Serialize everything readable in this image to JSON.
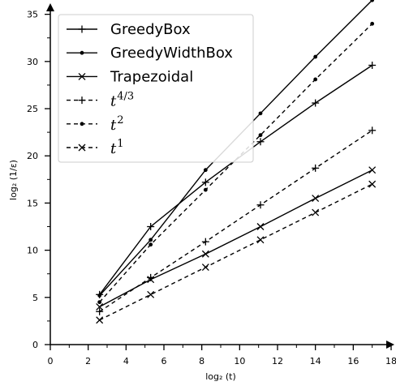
{
  "chart_data": {
    "type": "line",
    "xlabel": "log₂ (t)",
    "ylabel": "log₂ (1/ε)",
    "xlim": [
      0,
      18
    ],
    "ylim": [
      0,
      36
    ],
    "x_ticks": [
      0,
      2,
      4,
      6,
      8,
      10,
      12,
      14,
      16,
      18
    ],
    "y_ticks": [
      0,
      5,
      10,
      15,
      20,
      25,
      30,
      35
    ],
    "grid": false,
    "legend_position": "top-left",
    "series": [
      {
        "name": "GreedyBox",
        "style": "solid",
        "marker": "plus",
        "x": [
          2.6,
          5.3,
          8.2,
          11.1,
          14.0,
          17.0
        ],
        "y": [
          5.3,
          12.5,
          17.2,
          21.5,
          25.6,
          29.6
        ]
      },
      {
        "name": "GreedyWidthBox",
        "style": "solid",
        "marker": "dot",
        "x": [
          2.6,
          5.3,
          8.2,
          11.1,
          14.0,
          17.0
        ],
        "y": [
          5.2,
          11.1,
          18.5,
          24.5,
          30.5,
          36.5
        ]
      },
      {
        "name": "Trapezoidal",
        "style": "solid",
        "marker": "x",
        "x": [
          2.6,
          5.3,
          8.2,
          11.1,
          14.0,
          17.0
        ],
        "y": [
          4.0,
          6.9,
          9.6,
          12.5,
          15.5,
          18.5
        ]
      },
      {
        "name": "t^{4/3}",
        "legend_base": "t",
        "legend_exp": "4/3",
        "style": "dashed",
        "marker": "plus",
        "x": [
          2.6,
          5.3,
          8.2,
          11.1,
          14.0,
          17.0
        ],
        "y": [
          3.5,
          7.1,
          10.9,
          14.8,
          18.7,
          22.7
        ]
      },
      {
        "name": "t^2",
        "legend_base": "t",
        "legend_exp": "2",
        "style": "dashed",
        "marker": "dot",
        "x": [
          2.6,
          5.3,
          8.2,
          11.1,
          14.0,
          17.0
        ],
        "y": [
          4.5,
          10.6,
          16.4,
          22.2,
          28.1,
          34.0
        ]
      },
      {
        "name": "t^1",
        "legend_base": "t",
        "legend_exp": "1",
        "style": "dashed",
        "marker": "x",
        "x": [
          2.6,
          5.3,
          8.2,
          11.1,
          14.0,
          17.0
        ],
        "y": [
          2.6,
          5.3,
          8.2,
          11.1,
          14.0,
          17.0
        ]
      }
    ]
  }
}
